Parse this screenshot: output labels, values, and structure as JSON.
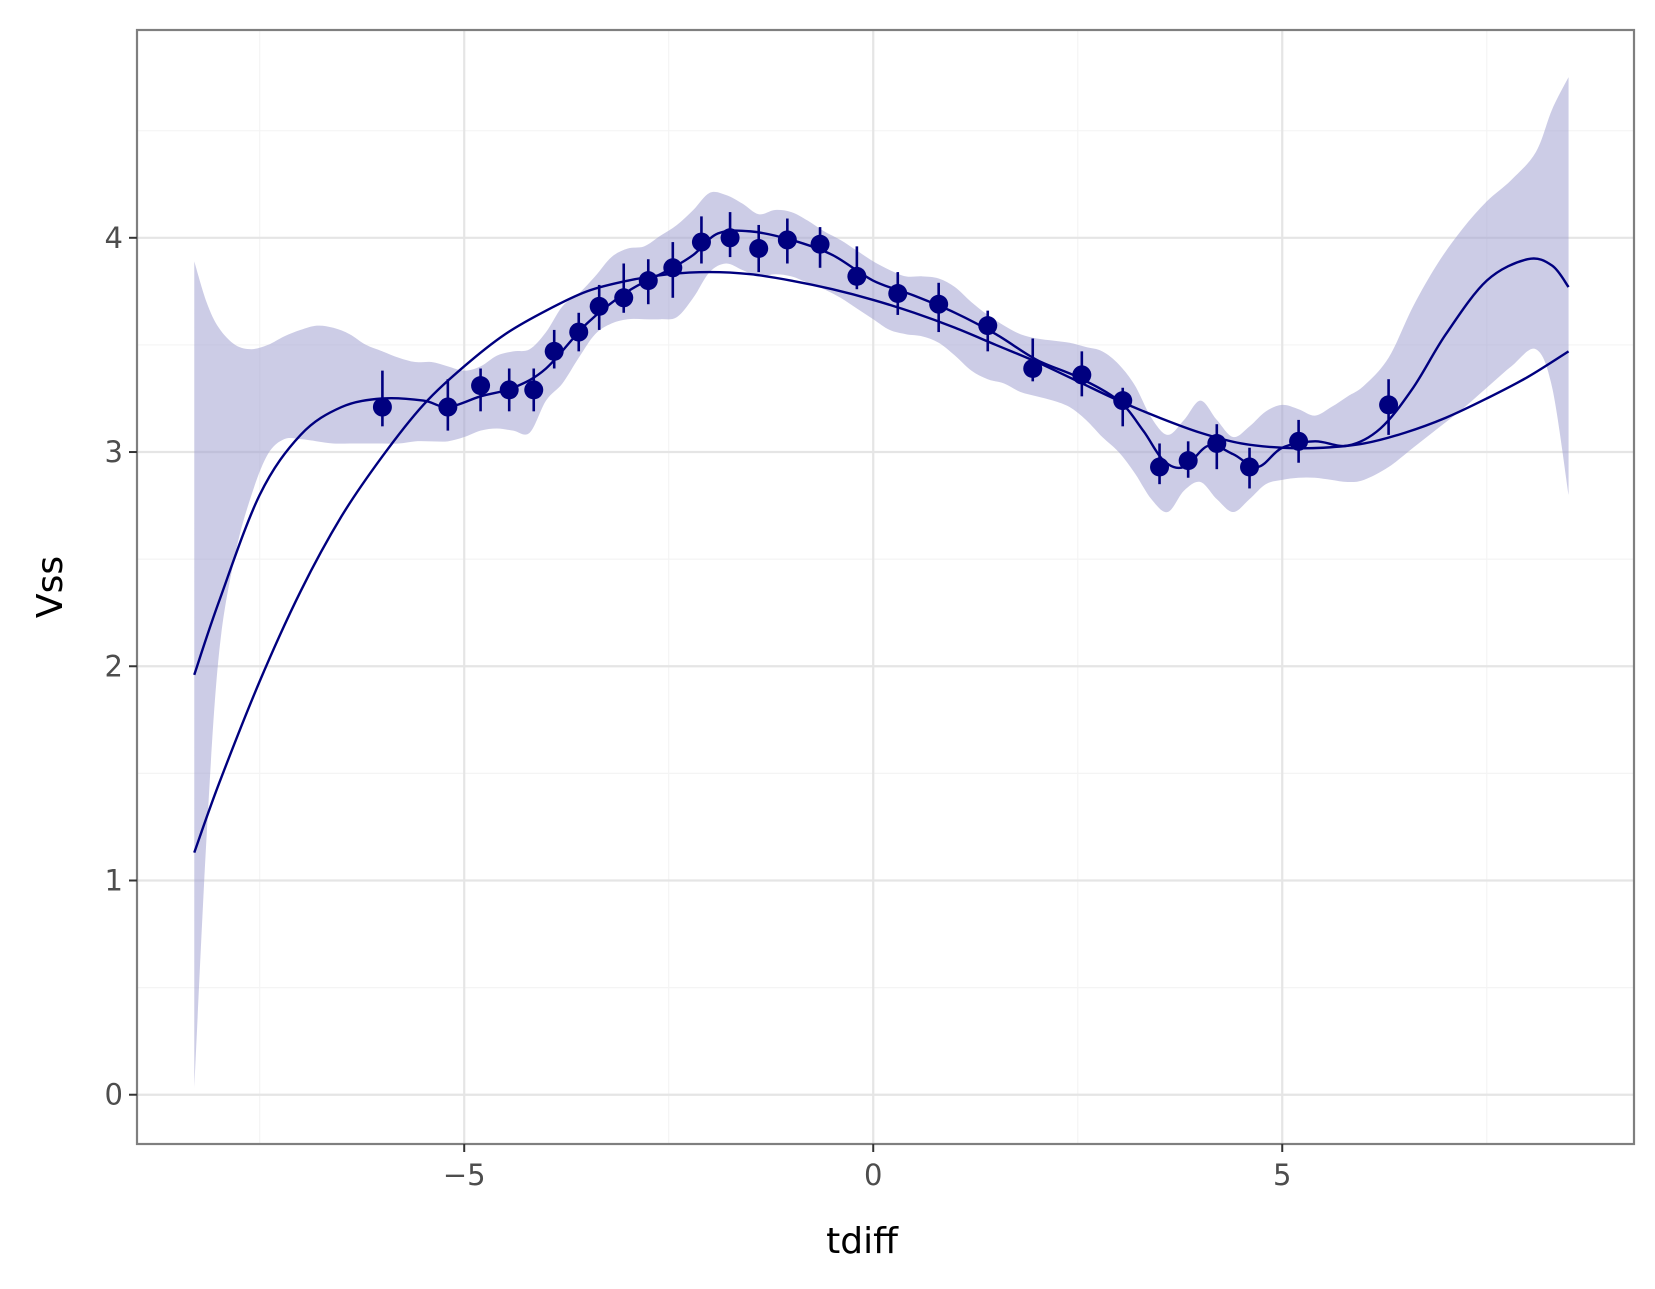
{
  "chart_data": {
    "type": "scatter",
    "xlabel": "tdiff",
    "ylabel": "Vss",
    "xlim": [
      -9.0,
      9.3
    ],
    "ylim": [
      -0.23,
      4.97
    ],
    "x_ticks": [
      -5,
      0,
      5
    ],
    "x_tick_labels": [
      "−5",
      "0",
      "5"
    ],
    "y_ticks": [
      0,
      1,
      2,
      3,
      4
    ],
    "y_tick_labels": [
      "0",
      "1",
      "2",
      "3",
      "4"
    ],
    "grid": true,
    "legend": "none",
    "colors": {
      "series": "#00007f",
      "band": "#a3a3d1",
      "grid_major": "#e5e5e5",
      "grid_minor": "#f4f4f4",
      "panel_border": "#7f7f7f"
    },
    "points": {
      "x": [
        -6.0,
        -5.2,
        -4.8,
        -4.45,
        -4.15,
        -3.9,
        -3.6,
        -3.35,
        -3.05,
        -2.75,
        -2.45,
        -2.1,
        -1.75,
        -1.4,
        -1.05,
        -0.65,
        -0.2,
        0.3,
        0.8,
        1.4,
        1.95,
        2.55,
        3.05,
        3.5,
        3.85,
        4.2,
        4.6,
        5.2,
        6.3
      ],
      "y": [
        3.21,
        3.21,
        3.31,
        3.29,
        3.29,
        3.47,
        3.56,
        3.68,
        3.72,
        3.8,
        3.86,
        3.98,
        4.0,
        3.95,
        3.99,
        3.97,
        3.82,
        3.74,
        3.69,
        3.59,
        3.39,
        3.36,
        3.24,
        2.93,
        2.96,
        3.04,
        2.93,
        3.05,
        3.22
      ],
      "err_low": [
        3.12,
        3.1,
        3.19,
        3.19,
        3.19,
        3.39,
        3.47,
        3.57,
        3.65,
        3.69,
        3.72,
        3.88,
        3.91,
        3.84,
        3.88,
        3.86,
        3.76,
        3.64,
        3.56,
        3.47,
        3.33,
        3.26,
        3.12,
        2.85,
        2.88,
        2.92,
        2.83,
        2.95,
        3.08
      ],
      "err_high": [
        3.38,
        3.34,
        3.39,
        3.39,
        3.39,
        3.57,
        3.65,
        3.78,
        3.88,
        3.9,
        3.98,
        4.1,
        4.12,
        4.06,
        4.09,
        4.05,
        3.96,
        3.84,
        3.79,
        3.66,
        3.53,
        3.47,
        3.3,
        3.04,
        3.05,
        3.13,
        3.02,
        3.15,
        3.34
      ]
    },
    "series": [
      {
        "kind": "smooth",
        "x": [
          -8.3,
          -8.0,
          -7.5,
          -7.0,
          -6.5,
          -6.0,
          -5.5,
          -5.2,
          -4.8,
          -4.4,
          -4.0,
          -3.5,
          -3.0,
          -2.5,
          -2.2,
          -1.9,
          -1.5,
          -1.0,
          -0.5,
          0.0,
          0.5,
          1.0,
          1.5,
          2.0,
          2.5,
          3.0,
          3.3,
          3.55,
          3.8,
          4.1,
          4.4,
          4.7,
          5.0,
          5.4,
          5.8,
          6.2,
          6.6,
          7.0,
          7.5,
          8.0,
          8.3,
          8.5
        ],
        "y": [
          1.96,
          2.3,
          2.8,
          3.08,
          3.21,
          3.25,
          3.24,
          3.21,
          3.26,
          3.3,
          3.39,
          3.6,
          3.75,
          3.85,
          3.92,
          4.02,
          4.03,
          3.99,
          3.92,
          3.8,
          3.73,
          3.65,
          3.55,
          3.43,
          3.35,
          3.24,
          3.1,
          2.96,
          2.93,
          3.03,
          2.99,
          2.93,
          3.02,
          3.05,
          3.03,
          3.11,
          3.3,
          3.55,
          3.8,
          3.9,
          3.87,
          3.77
        ]
      },
      {
        "kind": "trend",
        "x": [
          -8.3,
          -8.0,
          -7.5,
          -7.0,
          -6.5,
          -6.0,
          -5.5,
          -5.0,
          -4.5,
          -4.0,
          -3.5,
          -3.0,
          -2.5,
          -2.0,
          -1.5,
          -1.0,
          -0.5,
          0.0,
          0.5,
          1.0,
          1.5,
          2.0,
          2.5,
          3.0,
          3.5,
          4.0,
          4.5,
          5.0,
          5.5,
          6.0,
          6.5,
          7.0,
          7.5,
          8.0,
          8.5
        ],
        "y": [
          1.13,
          1.45,
          1.93,
          2.35,
          2.7,
          2.98,
          3.22,
          3.4,
          3.55,
          3.66,
          3.75,
          3.8,
          3.83,
          3.84,
          3.83,
          3.8,
          3.76,
          3.71,
          3.65,
          3.58,
          3.5,
          3.42,
          3.33,
          3.24,
          3.16,
          3.09,
          3.04,
          3.02,
          3.02,
          3.04,
          3.09,
          3.16,
          3.25,
          3.35,
          3.47
        ]
      }
    ],
    "band": {
      "x": [
        -8.3,
        -8.15,
        -8.0,
        -7.8,
        -7.6,
        -7.4,
        -7.2,
        -7.0,
        -6.8,
        -6.6,
        -6.4,
        -6.2,
        -6.0,
        -5.8,
        -5.6,
        -5.4,
        -5.2,
        -5.0,
        -4.8,
        -4.6,
        -4.4,
        -4.2,
        -4.0,
        -3.8,
        -3.6,
        -3.4,
        -3.2,
        -3.0,
        -2.8,
        -2.6,
        -2.4,
        -2.2,
        -2.0,
        -1.8,
        -1.6,
        -1.4,
        -1.2,
        -1.0,
        -0.8,
        -0.6,
        -0.4,
        -0.2,
        0.0,
        0.2,
        0.4,
        0.6,
        0.8,
        1.0,
        1.2,
        1.4,
        1.6,
        1.8,
        2.0,
        2.2,
        2.4,
        2.6,
        2.8,
        3.0,
        3.2,
        3.4,
        3.6,
        3.8,
        4.0,
        4.2,
        4.4,
        4.6,
        4.8,
        5.0,
        5.2,
        5.4,
        5.6,
        5.8,
        6.0,
        6.3,
        6.6,
        6.9,
        7.2,
        7.5,
        7.8,
        8.1,
        8.3,
        8.5
      ],
      "upper": [
        3.89,
        3.7,
        3.58,
        3.5,
        3.48,
        3.5,
        3.54,
        3.57,
        3.59,
        3.58,
        3.55,
        3.5,
        3.47,
        3.44,
        3.42,
        3.42,
        3.4,
        3.38,
        3.4,
        3.45,
        3.47,
        3.48,
        3.56,
        3.68,
        3.74,
        3.82,
        3.91,
        3.95,
        3.96,
        4.01,
        4.06,
        4.13,
        4.21,
        4.2,
        4.16,
        4.11,
        4.13,
        4.12,
        4.08,
        4.03,
        3.99,
        3.94,
        3.89,
        3.85,
        3.82,
        3.82,
        3.81,
        3.77,
        3.7,
        3.64,
        3.59,
        3.55,
        3.53,
        3.52,
        3.51,
        3.49,
        3.47,
        3.41,
        3.31,
        3.16,
        3.08,
        3.15,
        3.24,
        3.15,
        3.07,
        3.12,
        3.19,
        3.22,
        3.2,
        3.17,
        3.21,
        3.26,
        3.31,
        3.44,
        3.68,
        3.88,
        4.04,
        4.17,
        4.27,
        4.4,
        4.6,
        4.75
      ],
      "lower": [
        0.03,
        1.2,
        2.05,
        2.52,
        2.8,
        2.99,
        3.06,
        3.06,
        3.05,
        3.04,
        3.04,
        3.04,
        3.04,
        3.04,
        3.05,
        3.05,
        3.05,
        3.07,
        3.1,
        3.11,
        3.1,
        3.09,
        3.24,
        3.32,
        3.44,
        3.55,
        3.6,
        3.62,
        3.62,
        3.62,
        3.63,
        3.72,
        3.84,
        3.88,
        3.85,
        3.82,
        3.83,
        3.82,
        3.79,
        3.76,
        3.72,
        3.67,
        3.62,
        3.57,
        3.55,
        3.54,
        3.51,
        3.45,
        3.38,
        3.34,
        3.32,
        3.28,
        3.26,
        3.24,
        3.21,
        3.15,
        3.07,
        3.0,
        2.9,
        2.78,
        2.72,
        2.82,
        2.86,
        2.78,
        2.72,
        2.78,
        2.85,
        2.87,
        2.88,
        2.88,
        2.87,
        2.86,
        2.87,
        2.93,
        3.02,
        3.11,
        3.2,
        3.3,
        3.4,
        3.48,
        3.3,
        2.8
      ]
    }
  }
}
